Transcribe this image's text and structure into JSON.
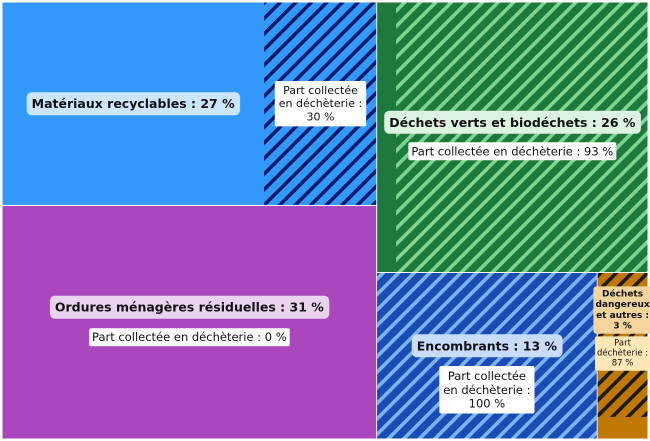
{
  "chart_data": {
    "type": "treemap",
    "collected_label": "Part collectée en déchèterie",
    "items": [
      {
        "key": "recyclables",
        "name": "Matériaux recyclables",
        "share": 27,
        "collected": 30,
        "color": "#3399ff",
        "stripe": "#0a1a66"
      },
      {
        "key": "verts",
        "name": "Déchets verts et biodéchets",
        "share": 26,
        "collected": 93,
        "color": "#1e7a3c",
        "stripe": "#7fd48f"
      },
      {
        "key": "omr",
        "name": "Ordures ménagères résiduelles",
        "share": 31,
        "collected": 0,
        "color": "#ab47bc",
        "stripe": "#5a1a6e"
      },
      {
        "key": "encombrants",
        "name": "Encombrants",
        "share": 13,
        "collected": 100,
        "color": "#1a4db3",
        "stripe": "#7fb3ff"
      },
      {
        "key": "dangereux",
        "name": "Déchets dangereux et autres",
        "share": 3,
        "collected": 87,
        "color": "#c07800",
        "stripe": "#1a1a1a"
      }
    ]
  }
}
